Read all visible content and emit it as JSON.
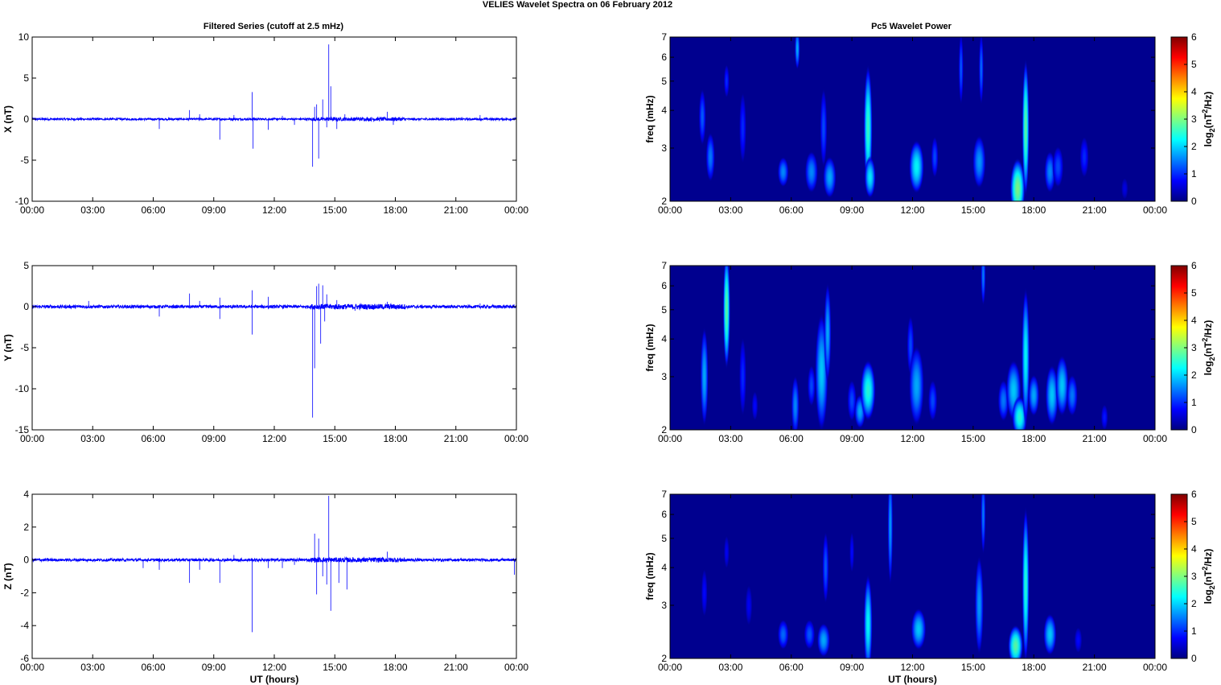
{
  "figure": {
    "title": "VELIES Wavelet Spectra on 06 February  2012",
    "left_title": "Filtered Series (cutoff at 2.5 mHz)",
    "right_title": "Pc5 Wavelet Power"
  },
  "chart_data": [
    {
      "type": "line",
      "id": "x",
      "ylabel": "X (nT)",
      "xlabel": "",
      "xticks": [
        "00:00",
        "03:00",
        "06:00",
        "09:00",
        "12:00",
        "15:00",
        "18:00",
        "21:00",
        "00:00"
      ],
      "ylim": [
        -10,
        10
      ],
      "yticks": [
        10,
        5,
        0,
        -5,
        -10
      ],
      "color": "#0000ff",
      "noise_amplitude": 0.12,
      "spikes": [
        [
          6.3,
          -1.2
        ],
        [
          7.8,
          1.1
        ],
        [
          8.3,
          0.6
        ],
        [
          9.3,
          -2.5
        ],
        [
          10.0,
          0.5
        ],
        [
          10.9,
          3.3
        ],
        [
          10.95,
          -3.6
        ],
        [
          11.7,
          -1.3
        ],
        [
          12.4,
          0.4
        ],
        [
          13.0,
          -0.7
        ],
        [
          13.9,
          -5.8
        ],
        [
          14.0,
          1.5
        ],
        [
          14.1,
          1.8
        ],
        [
          14.2,
          -4.8
        ],
        [
          14.4,
          2.4
        ],
        [
          14.6,
          -1.0
        ],
        [
          14.7,
          9.1
        ],
        [
          14.8,
          4.0
        ],
        [
          15.1,
          -1.2
        ],
        [
          15.5,
          0.6
        ],
        [
          17.6,
          0.9
        ],
        [
          17.9,
          -0.7
        ],
        [
          22.2,
          0.5
        ]
      ]
    },
    {
      "type": "line",
      "id": "y",
      "ylabel": "Y (nT)",
      "xlabel": "",
      "xticks": [
        "00:00",
        "03:00",
        "06:00",
        "09:00",
        "12:00",
        "15:00",
        "18:00",
        "21:00",
        "00:00"
      ],
      "ylim": [
        -15,
        5
      ],
      "yticks": [
        5,
        0,
        -5,
        -10,
        -15
      ],
      "color": "#0000ff",
      "noise_amplitude": 0.18,
      "spikes": [
        [
          2.8,
          0.7
        ],
        [
          6.3,
          -1.2
        ],
        [
          7.8,
          1.6
        ],
        [
          8.3,
          0.7
        ],
        [
          9.3,
          -1.5
        ],
        [
          9.3,
          1.1
        ],
        [
          10.9,
          2.0
        ],
        [
          10.9,
          -3.4
        ],
        [
          11.7,
          1.2
        ],
        [
          13.9,
          -13.5
        ],
        [
          14.0,
          -7.5
        ],
        [
          14.1,
          2.5
        ],
        [
          14.2,
          2.8
        ],
        [
          14.3,
          -4.5
        ],
        [
          14.4,
          2.6
        ],
        [
          14.5,
          -1.8
        ],
        [
          14.6,
          1.5
        ],
        [
          15.1,
          0.8
        ],
        [
          16.0,
          -0.5
        ],
        [
          17.6,
          0.6
        ],
        [
          22.2,
          0.4
        ]
      ]
    },
    {
      "type": "line",
      "id": "z",
      "ylabel": "Z (nT)",
      "xlabel": "UT (hours)",
      "xticks": [
        "00:00",
        "03:00",
        "06:00",
        "09:00",
        "12:00",
        "15:00",
        "18:00",
        "21:00",
        "00:00"
      ],
      "ylim": [
        -6,
        4
      ],
      "yticks": [
        4,
        2,
        0,
        -2,
        -4,
        -6
      ],
      "color": "#0000ff",
      "noise_amplitude": 0.08,
      "spikes": [
        [
          5.5,
          -0.5
        ],
        [
          6.3,
          -0.6
        ],
        [
          7.8,
          -1.4
        ],
        [
          8.3,
          -0.6
        ],
        [
          9.3,
          -1.4
        ],
        [
          10.0,
          0.3
        ],
        [
          10.9,
          -4.4
        ],
        [
          11.7,
          -0.5
        ],
        [
          12.4,
          -0.5
        ],
        [
          13.0,
          -0.3
        ],
        [
          14.0,
          1.6
        ],
        [
          14.1,
          -2.1
        ],
        [
          14.2,
          1.3
        ],
        [
          14.4,
          -1.0
        ],
        [
          14.6,
          -1.5
        ],
        [
          14.7,
          3.9
        ],
        [
          14.8,
          -3.1
        ],
        [
          15.2,
          -1.4
        ],
        [
          15.6,
          -1.8
        ],
        [
          17.6,
          0.5
        ],
        [
          23.9,
          -0.9
        ]
      ]
    },
    {
      "type": "heatmap",
      "id": "wx",
      "ylabel": "freq (mHz)",
      "xlabel": "",
      "xticks": [
        "00:00",
        "03:00",
        "06:00",
        "09:00",
        "12:00",
        "15:00",
        "18:00",
        "21:00",
        "00:00"
      ],
      "yticks": [
        2,
        3,
        4,
        5,
        6,
        7
      ],
      "ylim": [
        2,
        7
      ],
      "yscale": "log",
      "colorbar_label": "log2(nT2/Hz)",
      "colorbar_ticks": [
        0,
        1,
        2,
        3,
        4,
        5,
        6
      ],
      "blobs": [
        [
          1.6,
          3.8,
          0.1,
          0.14,
          1.3
        ],
        [
          2.0,
          2.8,
          0.15,
          0.12,
          1.5
        ],
        [
          2.8,
          5.0,
          0.06,
          0.08,
          1.0
        ],
        [
          3.6,
          3.5,
          0.1,
          0.18,
          1.0
        ],
        [
          5.6,
          2.5,
          0.2,
          0.07,
          1.6
        ],
        [
          6.3,
          6.4,
          0.05,
          0.1,
          1.8
        ],
        [
          7.0,
          2.5,
          0.25,
          0.1,
          1.6
        ],
        [
          7.6,
          3.5,
          0.1,
          0.2,
          1.2
        ],
        [
          7.9,
          2.4,
          0.25,
          0.1,
          1.8
        ],
        [
          9.8,
          3.5,
          0.14,
          0.32,
          2.6
        ],
        [
          9.9,
          2.4,
          0.2,
          0.1,
          2.2
        ],
        [
          12.2,
          2.6,
          0.3,
          0.13,
          2.3
        ],
        [
          13.1,
          2.8,
          0.1,
          0.1,
          1.2
        ],
        [
          14.4,
          5.5,
          0.04,
          0.18,
          1.3
        ],
        [
          15.3,
          2.7,
          0.25,
          0.13,
          1.7
        ],
        [
          15.4,
          5.5,
          0.04,
          0.18,
          1.4
        ],
        [
          17.2,
          2.2,
          0.3,
          0.15,
          3.0
        ],
        [
          17.6,
          3.5,
          0.1,
          0.35,
          2.8
        ],
        [
          18.8,
          2.5,
          0.2,
          0.1,
          1.6
        ],
        [
          19.2,
          2.6,
          0.2,
          0.1,
          1.2
        ],
        [
          20.5,
          2.8,
          0.15,
          0.1,
          1.0
        ],
        [
          22.5,
          2.2,
          0.1,
          0.05,
          0.6
        ]
      ]
    },
    {
      "type": "heatmap",
      "id": "wy",
      "ylabel": "freq (mHz)",
      "xlabel": "",
      "xticks": [
        "00:00",
        "03:00",
        "06:00",
        "09:00",
        "12:00",
        "15:00",
        "18:00",
        "21:00",
        "00:00"
      ],
      "yticks": [
        2,
        3,
        4,
        5,
        6,
        7
      ],
      "ylim": [
        2,
        7
      ],
      "yscale": "log",
      "colorbar_label": "log2(nT2/Hz)",
      "colorbar_ticks": [
        0,
        1,
        2,
        3,
        4,
        5,
        6
      ],
      "blobs": [
        [
          1.7,
          3.0,
          0.12,
          0.25,
          1.8
        ],
        [
          2.8,
          5.0,
          0.1,
          0.3,
          2.8
        ],
        [
          3.6,
          3.0,
          0.1,
          0.2,
          1.0
        ],
        [
          4.2,
          2.4,
          0.08,
          0.07,
          0.8
        ],
        [
          6.2,
          2.4,
          0.12,
          0.15,
          1.6
        ],
        [
          7.0,
          2.8,
          0.12,
          0.1,
          1.2
        ],
        [
          7.5,
          3.1,
          0.25,
          0.3,
          2.0
        ],
        [
          7.8,
          4.2,
          0.1,
          0.25,
          1.8
        ],
        [
          9.0,
          2.5,
          0.15,
          0.1,
          1.2
        ],
        [
          9.4,
          2.3,
          0.2,
          0.08,
          1.8
        ],
        [
          9.8,
          2.7,
          0.3,
          0.15,
          2.5
        ],
        [
          11.9,
          3.8,
          0.1,
          0.15,
          1.2
        ],
        [
          12.2,
          2.8,
          0.3,
          0.2,
          1.8
        ],
        [
          13.0,
          2.5,
          0.15,
          0.1,
          1.2
        ],
        [
          15.5,
          6.5,
          0.04,
          0.15,
          1.5
        ],
        [
          16.5,
          2.5,
          0.2,
          0.1,
          1.5
        ],
        [
          17.0,
          2.7,
          0.3,
          0.15,
          2.0
        ],
        [
          17.3,
          2.2,
          0.3,
          0.1,
          2.5
        ],
        [
          17.6,
          3.5,
          0.12,
          0.35,
          2.3
        ],
        [
          18.0,
          2.6,
          0.2,
          0.1,
          1.8
        ],
        [
          18.9,
          2.6,
          0.25,
          0.15,
          2.0
        ],
        [
          19.4,
          2.8,
          0.25,
          0.15,
          2.0
        ],
        [
          19.9,
          2.6,
          0.2,
          0.1,
          1.5
        ],
        [
          21.5,
          2.2,
          0.1,
          0.06,
          0.9
        ]
      ]
    },
    {
      "type": "heatmap",
      "id": "wz",
      "ylabel": "freq (mHz)",
      "xlabel": "UT (hours)",
      "xticks": [
        "00:00",
        "03:00",
        "06:00",
        "09:00",
        "12:00",
        "15:00",
        "18:00",
        "21:00",
        "00:00"
      ],
      "yticks": [
        2,
        3,
        4,
        5,
        6,
        7
      ],
      "ylim": [
        2,
        7
      ],
      "yscale": "log",
      "colorbar_label": "log2(nT2/Hz)",
      "colorbar_ticks": [
        0,
        1,
        2,
        3,
        4,
        5,
        6
      ],
      "blobs": [
        [
          1.7,
          3.3,
          0.08,
          0.12,
          0.8
        ],
        [
          2.8,
          4.5,
          0.06,
          0.08,
          0.7
        ],
        [
          3.9,
          3.0,
          0.1,
          0.1,
          0.7
        ],
        [
          5.6,
          2.4,
          0.2,
          0.07,
          1.4
        ],
        [
          6.9,
          2.4,
          0.2,
          0.07,
          1.3
        ],
        [
          7.6,
          2.3,
          0.25,
          0.08,
          1.8
        ],
        [
          7.7,
          4.0,
          0.08,
          0.18,
          1.3
        ],
        [
          9.0,
          4.5,
          0.04,
          0.1,
          0.8
        ],
        [
          9.8,
          2.6,
          0.14,
          0.25,
          2.3
        ],
        [
          10.9,
          5.5,
          0.05,
          0.3,
          1.7
        ],
        [
          12.3,
          2.5,
          0.3,
          0.1,
          2.0
        ],
        [
          15.3,
          3.0,
          0.14,
          0.25,
          1.7
        ],
        [
          15.5,
          6.0,
          0.04,
          0.2,
          1.5
        ],
        [
          17.1,
          2.2,
          0.3,
          0.1,
          2.8
        ],
        [
          17.6,
          3.5,
          0.1,
          0.4,
          2.5
        ],
        [
          18.8,
          2.4,
          0.25,
          0.1,
          2.0
        ],
        [
          20.2,
          2.3,
          0.12,
          0.06,
          0.8
        ]
      ]
    }
  ]
}
